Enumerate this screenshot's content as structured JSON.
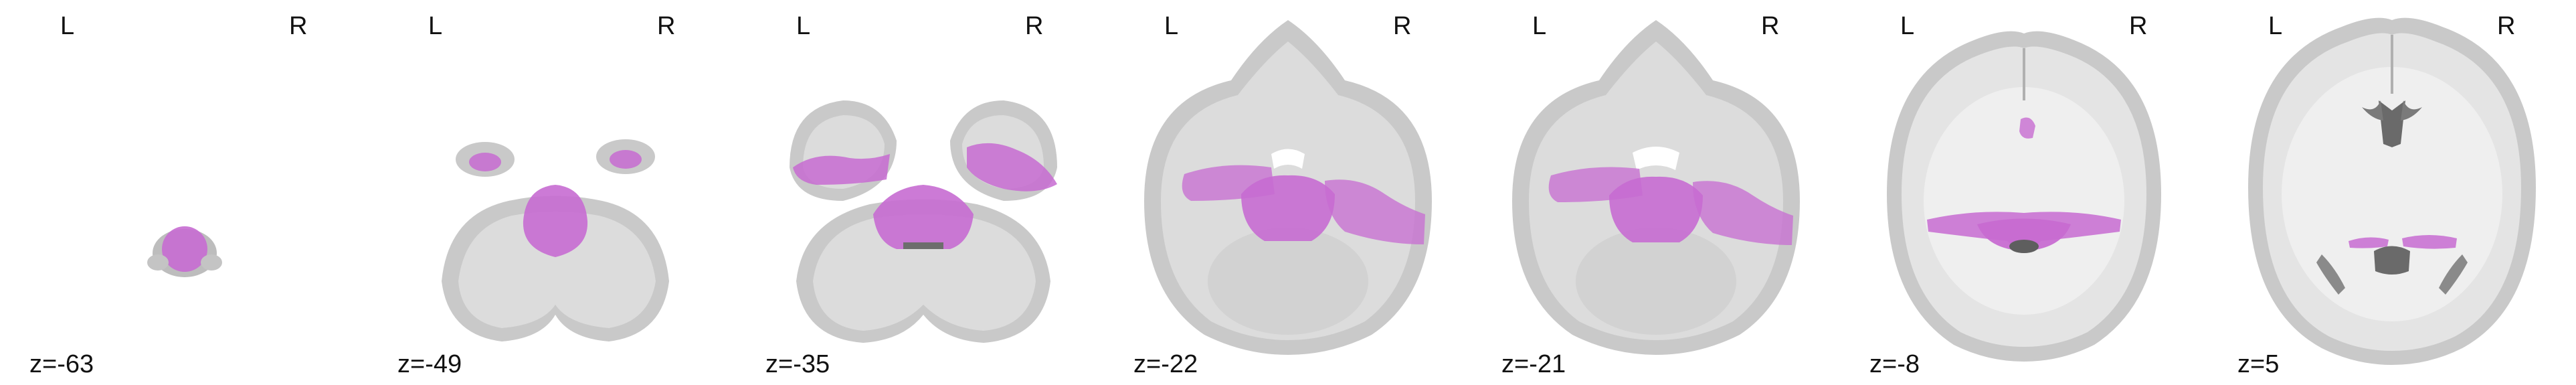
{
  "figure": {
    "orientation_labels": {
      "left": "L",
      "right": "R"
    },
    "colors": {
      "background": "#ffffff",
      "brain_outer": "#c9c9c9",
      "brain_inner": "#dcdcdc",
      "white_matter": "#efefef",
      "overlay": "#c76bd1",
      "dark": "#8a8a8a"
    },
    "slices": [
      {
        "coordinate": "z=-63"
      },
      {
        "coordinate": "z=-49"
      },
      {
        "coordinate": "z=-35"
      },
      {
        "coordinate": "z=-22"
      },
      {
        "coordinate": "z=-21"
      },
      {
        "coordinate": "z=-8"
      },
      {
        "coordinate": "z=5"
      }
    ]
  }
}
